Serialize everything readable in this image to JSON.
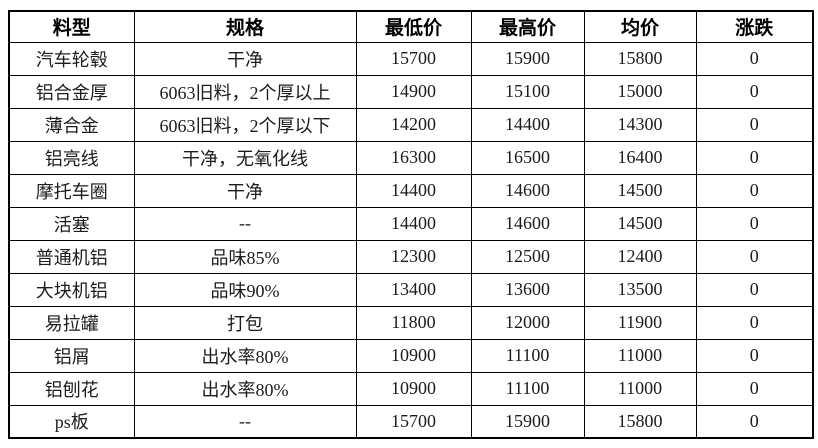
{
  "table": {
    "columns": [
      {
        "key": "material",
        "label": "料型"
      },
      {
        "key": "spec",
        "label": "规格"
      },
      {
        "key": "min_price",
        "label": "最低价"
      },
      {
        "key": "max_price",
        "label": "最高价"
      },
      {
        "key": "avg_price",
        "label": "均价"
      },
      {
        "key": "change",
        "label": "涨跌"
      }
    ],
    "rows": [
      {
        "material": "汽车轮毂",
        "spec": "干净",
        "min_price": "15700",
        "max_price": "15900",
        "avg_price": "15800",
        "change": "0"
      },
      {
        "material": "铝合金厚",
        "spec": "6063旧料，2个厚以上",
        "min_price": "14900",
        "max_price": "15100",
        "avg_price": "15000",
        "change": "0"
      },
      {
        "material": "薄合金",
        "spec": "6063旧料，2个厚以下",
        "min_price": "14200",
        "max_price": "14400",
        "avg_price": "14300",
        "change": "0"
      },
      {
        "material": "铝亮线",
        "spec": "干净，无氧化线",
        "min_price": "16300",
        "max_price": "16500",
        "avg_price": "16400",
        "change": "0"
      },
      {
        "material": "摩托车圈",
        "spec": "干净",
        "min_price": "14400",
        "max_price": "14600",
        "avg_price": "14500",
        "change": "0"
      },
      {
        "material": "活塞",
        "spec": "--",
        "min_price": "14400",
        "max_price": "14600",
        "avg_price": "14500",
        "change": "0"
      },
      {
        "material": "普通机铝",
        "spec": "品味85%",
        "min_price": "12300",
        "max_price": "12500",
        "avg_price": "12400",
        "change": "0"
      },
      {
        "material": "大块机铝",
        "spec": "品味90%",
        "min_price": "13400",
        "max_price": "13600",
        "avg_price": "13500",
        "change": "0"
      },
      {
        "material": "易拉罐",
        "spec": "打包",
        "min_price": "11800",
        "max_price": "12000",
        "avg_price": "11900",
        "change": "0"
      },
      {
        "material": "铝屑",
        "spec": "出水率80%",
        "min_price": "10900",
        "max_price": "11100",
        "avg_price": "11000",
        "change": "0"
      },
      {
        "material": "铝刨花",
        "spec": "出水率80%",
        "min_price": "10900",
        "max_price": "11100",
        "avg_price": "11000",
        "change": "0"
      },
      {
        "material": "ps板",
        "spec": "--",
        "min_price": "15700",
        "max_price": "15900",
        "avg_price": "15800",
        "change": "0"
      }
    ],
    "colors": {
      "border": "#000000",
      "header_text": "#000000",
      "body_text": "#1c1c1c",
      "background": "#ffffff"
    }
  }
}
